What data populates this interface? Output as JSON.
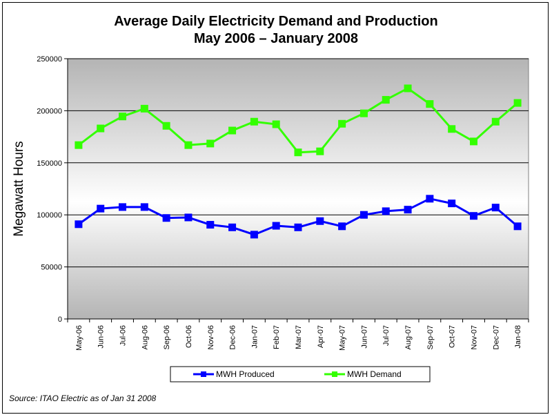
{
  "chart_data": {
    "type": "line",
    "title_line1": "Average Daily Electricity Demand and Production",
    "title_line2": "May 2006 – January 2008",
    "ylabel": "Megawatt Hours",
    "xlabel": "",
    "ylim": [
      0,
      250000
    ],
    "yticks": [
      0,
      50000,
      100000,
      150000,
      200000,
      250000
    ],
    "grid": true,
    "legend_position": "bottom",
    "categories": [
      "May-06",
      "Jun-06",
      "Jul-06",
      "Aug-06",
      "Sep-06",
      "Oct-06",
      "Nov-06",
      "Dec-06",
      "Jan-07",
      "Feb-07",
      "Mar-07",
      "Apr-07",
      "May-07",
      "Jun-07",
      "Jul-07",
      "Aug-07",
      "Sep-07",
      "Oct-07",
      "Nov-07",
      "Dec-07",
      "Jan-08"
    ],
    "series": [
      {
        "name": "MWH Produced",
        "color": "#0000FF",
        "values": [
          91000,
          106000,
          107500,
          107500,
          97000,
          97500,
          90500,
          88000,
          81000,
          89500,
          88000,
          94000,
          89000,
          100000,
          103500,
          105000,
          115500,
          111000,
          99000,
          107000,
          89000
        ]
      },
      {
        "name": "MWH Demand",
        "color": "#33FF00",
        "values": [
          167000,
          183000,
          194500,
          202000,
          185500,
          167000,
          168500,
          181000,
          189500,
          187000,
          160000,
          161000,
          187500,
          197500,
          210500,
          221500,
          206500,
          182500,
          170500,
          189500,
          207500
        ]
      }
    ]
  },
  "source": "Source:  ITAO Electric as of Jan 31 2008",
  "colors": {
    "plot_gradient_edge": "#b4b4b4",
    "plot_gradient_center": "#ffffff",
    "gridline": "#000000",
    "axis": "#000000"
  }
}
